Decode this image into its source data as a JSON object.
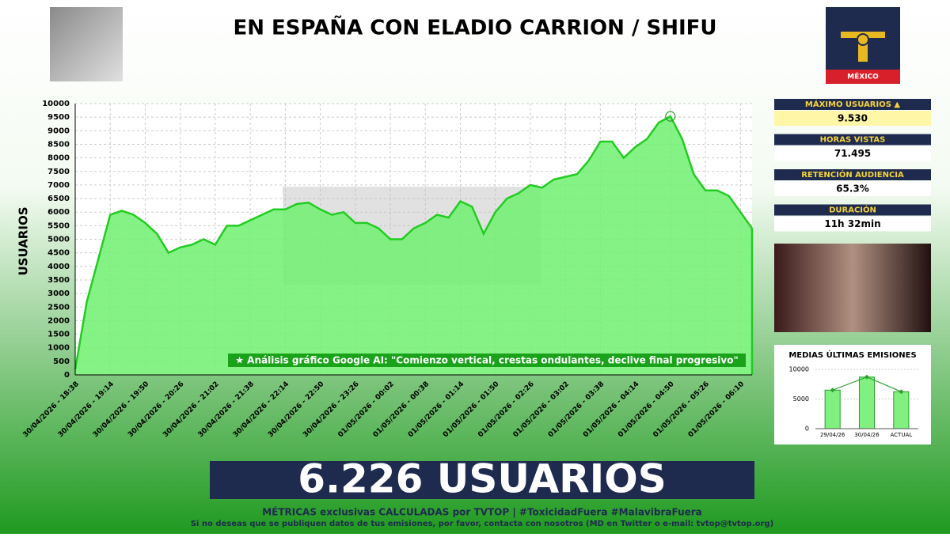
{
  "header": {
    "title": "EN ESPAÑA CON ELADIO CARRION / SHIFU",
    "logo_label": "MÉXICO"
  },
  "chart_data": [
    {
      "type": "area",
      "y_label": "USUARIOS",
      "annotation": "★ Análisis gráfico Google AI: \"Comienzo vertical, crestas ondulantes, declive final progresivo\"",
      "color": "#22cc22",
      "fill": "#70f070",
      "categories": [
        "30/04/2026 - 18:38",
        null,
        null,
        "30/04/2026 - 19:14",
        null,
        null,
        "30/04/2026 - 19:50",
        null,
        null,
        "30/04/2026 - 20:26",
        null,
        null,
        "30/04/2026 - 21:02",
        null,
        null,
        "30/04/2026 - 21:38",
        null,
        null,
        "30/04/2026 - 22:14",
        null,
        null,
        "30/04/2026 - 22:50",
        null,
        null,
        "30/04/2026 - 23:26",
        null,
        null,
        "01/05/2026 - 00:02",
        null,
        null,
        "01/05/2026 - 00:38",
        null,
        null,
        "01/05/2026 - 01:14",
        null,
        null,
        "01/05/2026 - 01:50",
        null,
        null,
        "01/05/2026 - 02:26",
        null,
        null,
        "01/05/2026 - 03:02",
        null,
        null,
        "01/05/2026 - 03:38",
        null,
        null,
        "01/05/2026 - 04:14",
        null,
        null,
        "01/05/2026 - 04:50",
        null,
        null,
        "01/05/2026 - 05:26",
        null,
        null,
        "01/05/2026 - 06:10",
        null
      ],
      "values": [
        200,
        2700,
        4300,
        5900,
        6050,
        5900,
        5600,
        5200,
        4500,
        4700,
        4800,
        5000,
        4800,
        5500,
        5500,
        5700,
        5900,
        6100,
        6100,
        6300,
        6350,
        6100,
        5900,
        6000,
        5600,
        5600,
        5400,
        5000,
        5000,
        5400,
        5600,
        5900,
        5800,
        6400,
        6200,
        5200,
        6000,
        6500,
        6700,
        7000,
        6900,
        7200,
        7300,
        7400,
        7900,
        8600,
        8600,
        8000,
        8400,
        8700,
        9300,
        9530,
        8700,
        7400,
        6800,
        6800,
        6600,
        6000,
        5400
      ],
      "ylim": [
        0,
        10000
      ],
      "yticks": [
        0,
        500,
        1000,
        1500,
        2000,
        2500,
        3000,
        3500,
        4000,
        4500,
        5000,
        5500,
        6000,
        6500,
        7000,
        7500,
        8000,
        8500,
        9000,
        9500,
        10000
      ],
      "grid": true
    },
    {
      "type": "bar",
      "title": "MEDIAS ÚLTIMAS EMISIONES",
      "color": "#80f080",
      "line_color": "#2e9e2e",
      "categories": [
        "29/04/26",
        "30/04/26",
        "ACTUAL"
      ],
      "values": [
        6500,
        8700,
        6226
      ],
      "ylim": [
        0,
        10000
      ],
      "yticks": [
        0,
        5000,
        10000
      ],
      "grid": true
    }
  ],
  "stats": [
    {
      "label": "MÁXIMO USUARIOS ▲",
      "value": "9.530"
    },
    {
      "label": "HORAS VISTAS",
      "value": "71.495"
    },
    {
      "label": "RETENCIÓN AUDIENCIA",
      "value": "65.3%"
    },
    {
      "label": "DURACIÓN",
      "value": "11h 32min"
    }
  ],
  "banner": "6.226 USUARIOS",
  "footer": {
    "line1": "MÉTRICAS exclusivas CALCULADAS por TVTOP | #ToxicidadFuera #MalavibraFuera",
    "line2": "Si no deseas que se publiquen datos de tus emisiones, por favor, contacta con nosotros (MD en Twitter o e-mail: tvtop@tvtop.org)"
  }
}
